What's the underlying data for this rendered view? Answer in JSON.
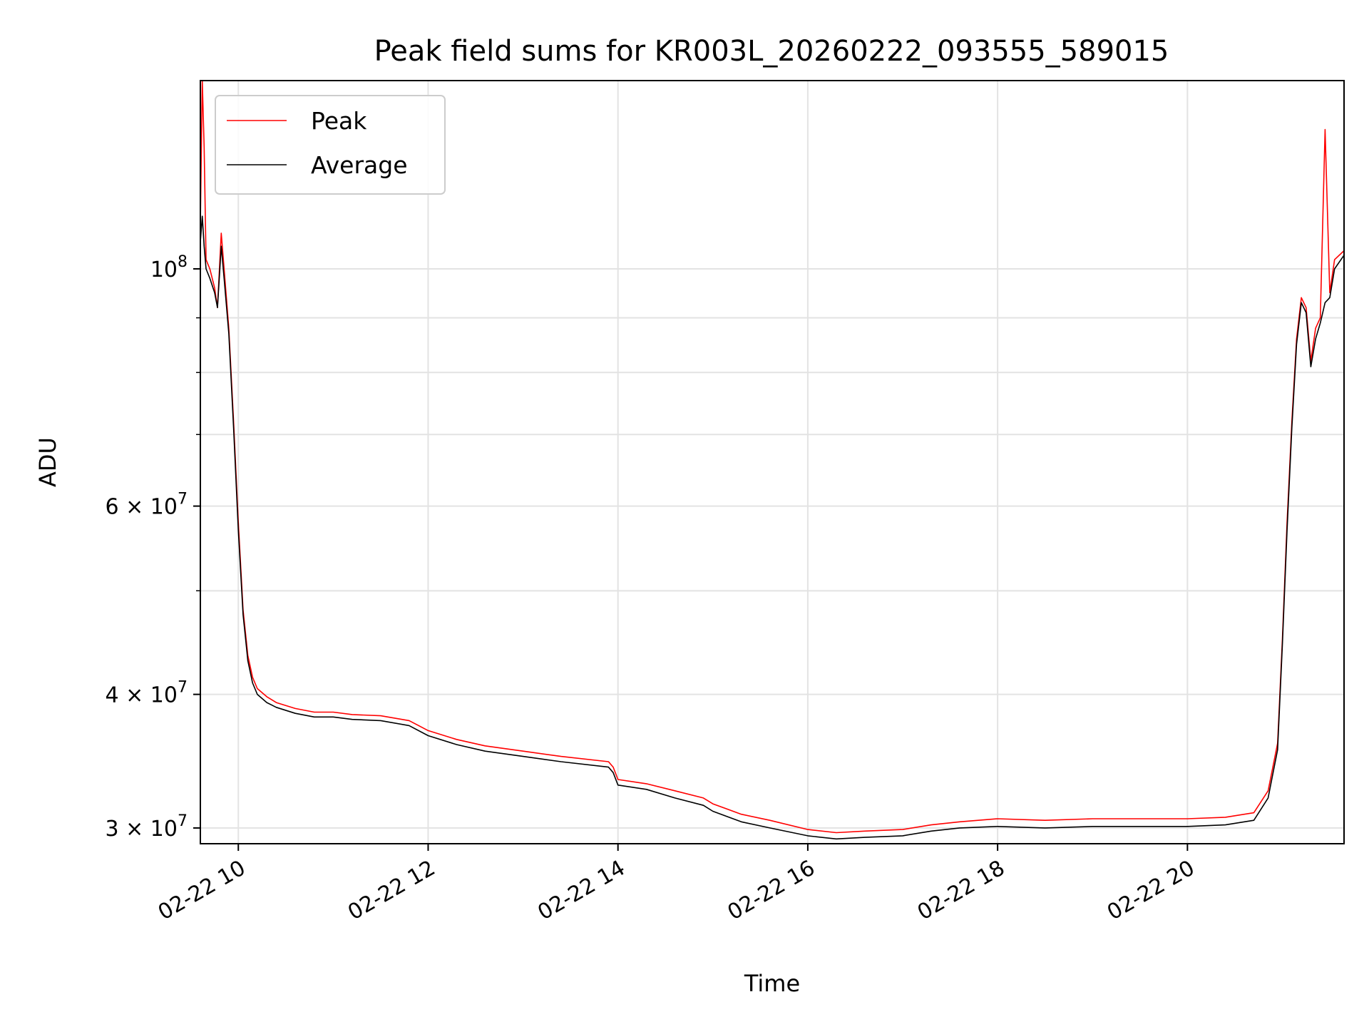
{
  "chart_data": {
    "type": "line",
    "title": "Peak field sums for KR003L_20260222_093555_589015",
    "xlabel": "Time",
    "ylabel": "ADU",
    "yscale": "log",
    "xlim": [
      9.6,
      21.65
    ],
    "ylim": [
      29000000,
      150000000
    ],
    "grid": true,
    "legend_position": "upper-left",
    "x_ticks": [
      {
        "value": 10,
        "label": "02-22 10"
      },
      {
        "value": 12,
        "label": "02-22 12"
      },
      {
        "value": 14,
        "label": "02-22 14"
      },
      {
        "value": 16,
        "label": "02-22 16"
      },
      {
        "value": 18,
        "label": "02-22 18"
      },
      {
        "value": 20,
        "label": "02-22 20"
      }
    ],
    "y_major_ticks": [
      {
        "value": 100000000,
        "base": "10",
        "exp": "8"
      },
      {
        "value": 60000000,
        "base": "6 × 10",
        "exp": "7"
      },
      {
        "value": 40000000,
        "base": "4 × 10",
        "exp": "7"
      },
      {
        "value": 30000000,
        "base": "3 × 10",
        "exp": "7"
      }
    ],
    "y_minor_ticks": [
      90000000,
      80000000,
      70000000,
      50000000
    ],
    "series": [
      {
        "name": "Peak",
        "color": "#ff0000",
        "x": [
          9.6,
          9.62,
          9.64,
          9.66,
          9.7,
          9.75,
          9.78,
          9.82,
          9.85,
          9.9,
          9.95,
          10.0,
          10.05,
          10.1,
          10.15,
          10.2,
          10.3,
          10.4,
          10.6,
          10.8,
          11.0,
          11.2,
          11.5,
          11.8,
          12.0,
          12.3,
          12.6,
          13.0,
          13.4,
          13.9,
          13.95,
          14.0,
          14.3,
          14.6,
          14.9,
          15.0,
          15.3,
          15.6,
          16.0,
          16.3,
          16.6,
          17.0,
          17.3,
          17.6,
          18.0,
          18.5,
          19.0,
          19.5,
          20.0,
          20.4,
          20.7,
          20.85,
          20.95,
          21.0,
          21.05,
          21.1,
          21.15,
          21.2,
          21.25,
          21.3,
          21.35,
          21.4,
          21.45,
          21.5,
          21.55,
          21.65
        ],
        "values": [
          110000000,
          150000000,
          130000000,
          102000000,
          100000000,
          96000000,
          92000000,
          108000000,
          100000000,
          88000000,
          72000000,
          58000000,
          48000000,
          43500000,
          41500000,
          40500000,
          39800000,
          39300000,
          38800000,
          38500000,
          38500000,
          38300000,
          38200000,
          37800000,
          37000000,
          36300000,
          35800000,
          35400000,
          35000000,
          34600000,
          34200000,
          33300000,
          33000000,
          32500000,
          32000000,
          31600000,
          30900000,
          30500000,
          29900000,
          29700000,
          29800000,
          29900000,
          30200000,
          30400000,
          30600000,
          30500000,
          30600000,
          30600000,
          30600000,
          30700000,
          31000000,
          32500000,
          36000000,
          45000000,
          58000000,
          72000000,
          86000000,
          94000000,
          92000000,
          82000000,
          88000000,
          90000000,
          135000000,
          95000000,
          102000000,
          104000000
        ]
      },
      {
        "name": "Average",
        "color": "#000000",
        "x": [
          9.6,
          9.62,
          9.64,
          9.66,
          9.7,
          9.75,
          9.78,
          9.82,
          9.85,
          9.9,
          9.95,
          10.0,
          10.05,
          10.1,
          10.15,
          10.2,
          10.3,
          10.4,
          10.6,
          10.8,
          11.0,
          11.2,
          11.5,
          11.8,
          12.0,
          12.3,
          12.6,
          13.0,
          13.4,
          13.9,
          13.95,
          14.0,
          14.3,
          14.6,
          14.9,
          15.0,
          15.3,
          15.6,
          16.0,
          16.3,
          16.6,
          17.0,
          17.3,
          17.6,
          18.0,
          18.5,
          19.0,
          19.5,
          20.0,
          20.4,
          20.7,
          20.85,
          20.95,
          21.0,
          21.05,
          21.1,
          21.15,
          21.2,
          21.25,
          21.3,
          21.35,
          21.4,
          21.45,
          21.5,
          21.55,
          21.65
        ],
        "values": [
          106000000,
          112000000,
          105000000,
          100000000,
          98000000,
          95000000,
          92000000,
          105000000,
          98000000,
          87000000,
          71000000,
          57000000,
          47500000,
          43000000,
          41000000,
          40000000,
          39300000,
          38900000,
          38400000,
          38100000,
          38100000,
          37900000,
          37800000,
          37400000,
          36600000,
          35900000,
          35400000,
          35000000,
          34600000,
          34200000,
          33800000,
          32900000,
          32600000,
          32000000,
          31500000,
          31100000,
          30400000,
          30000000,
          29500000,
          29300000,
          29400000,
          29500000,
          29800000,
          30000000,
          30100000,
          30000000,
          30100000,
          30100000,
          30100000,
          30200000,
          30500000,
          32000000,
          35500000,
          44500000,
          57000000,
          71000000,
          85000000,
          93000000,
          91000000,
          81000000,
          86000000,
          89000000,
          93000000,
          94000000,
          100000000,
          103000000
        ]
      }
    ]
  }
}
